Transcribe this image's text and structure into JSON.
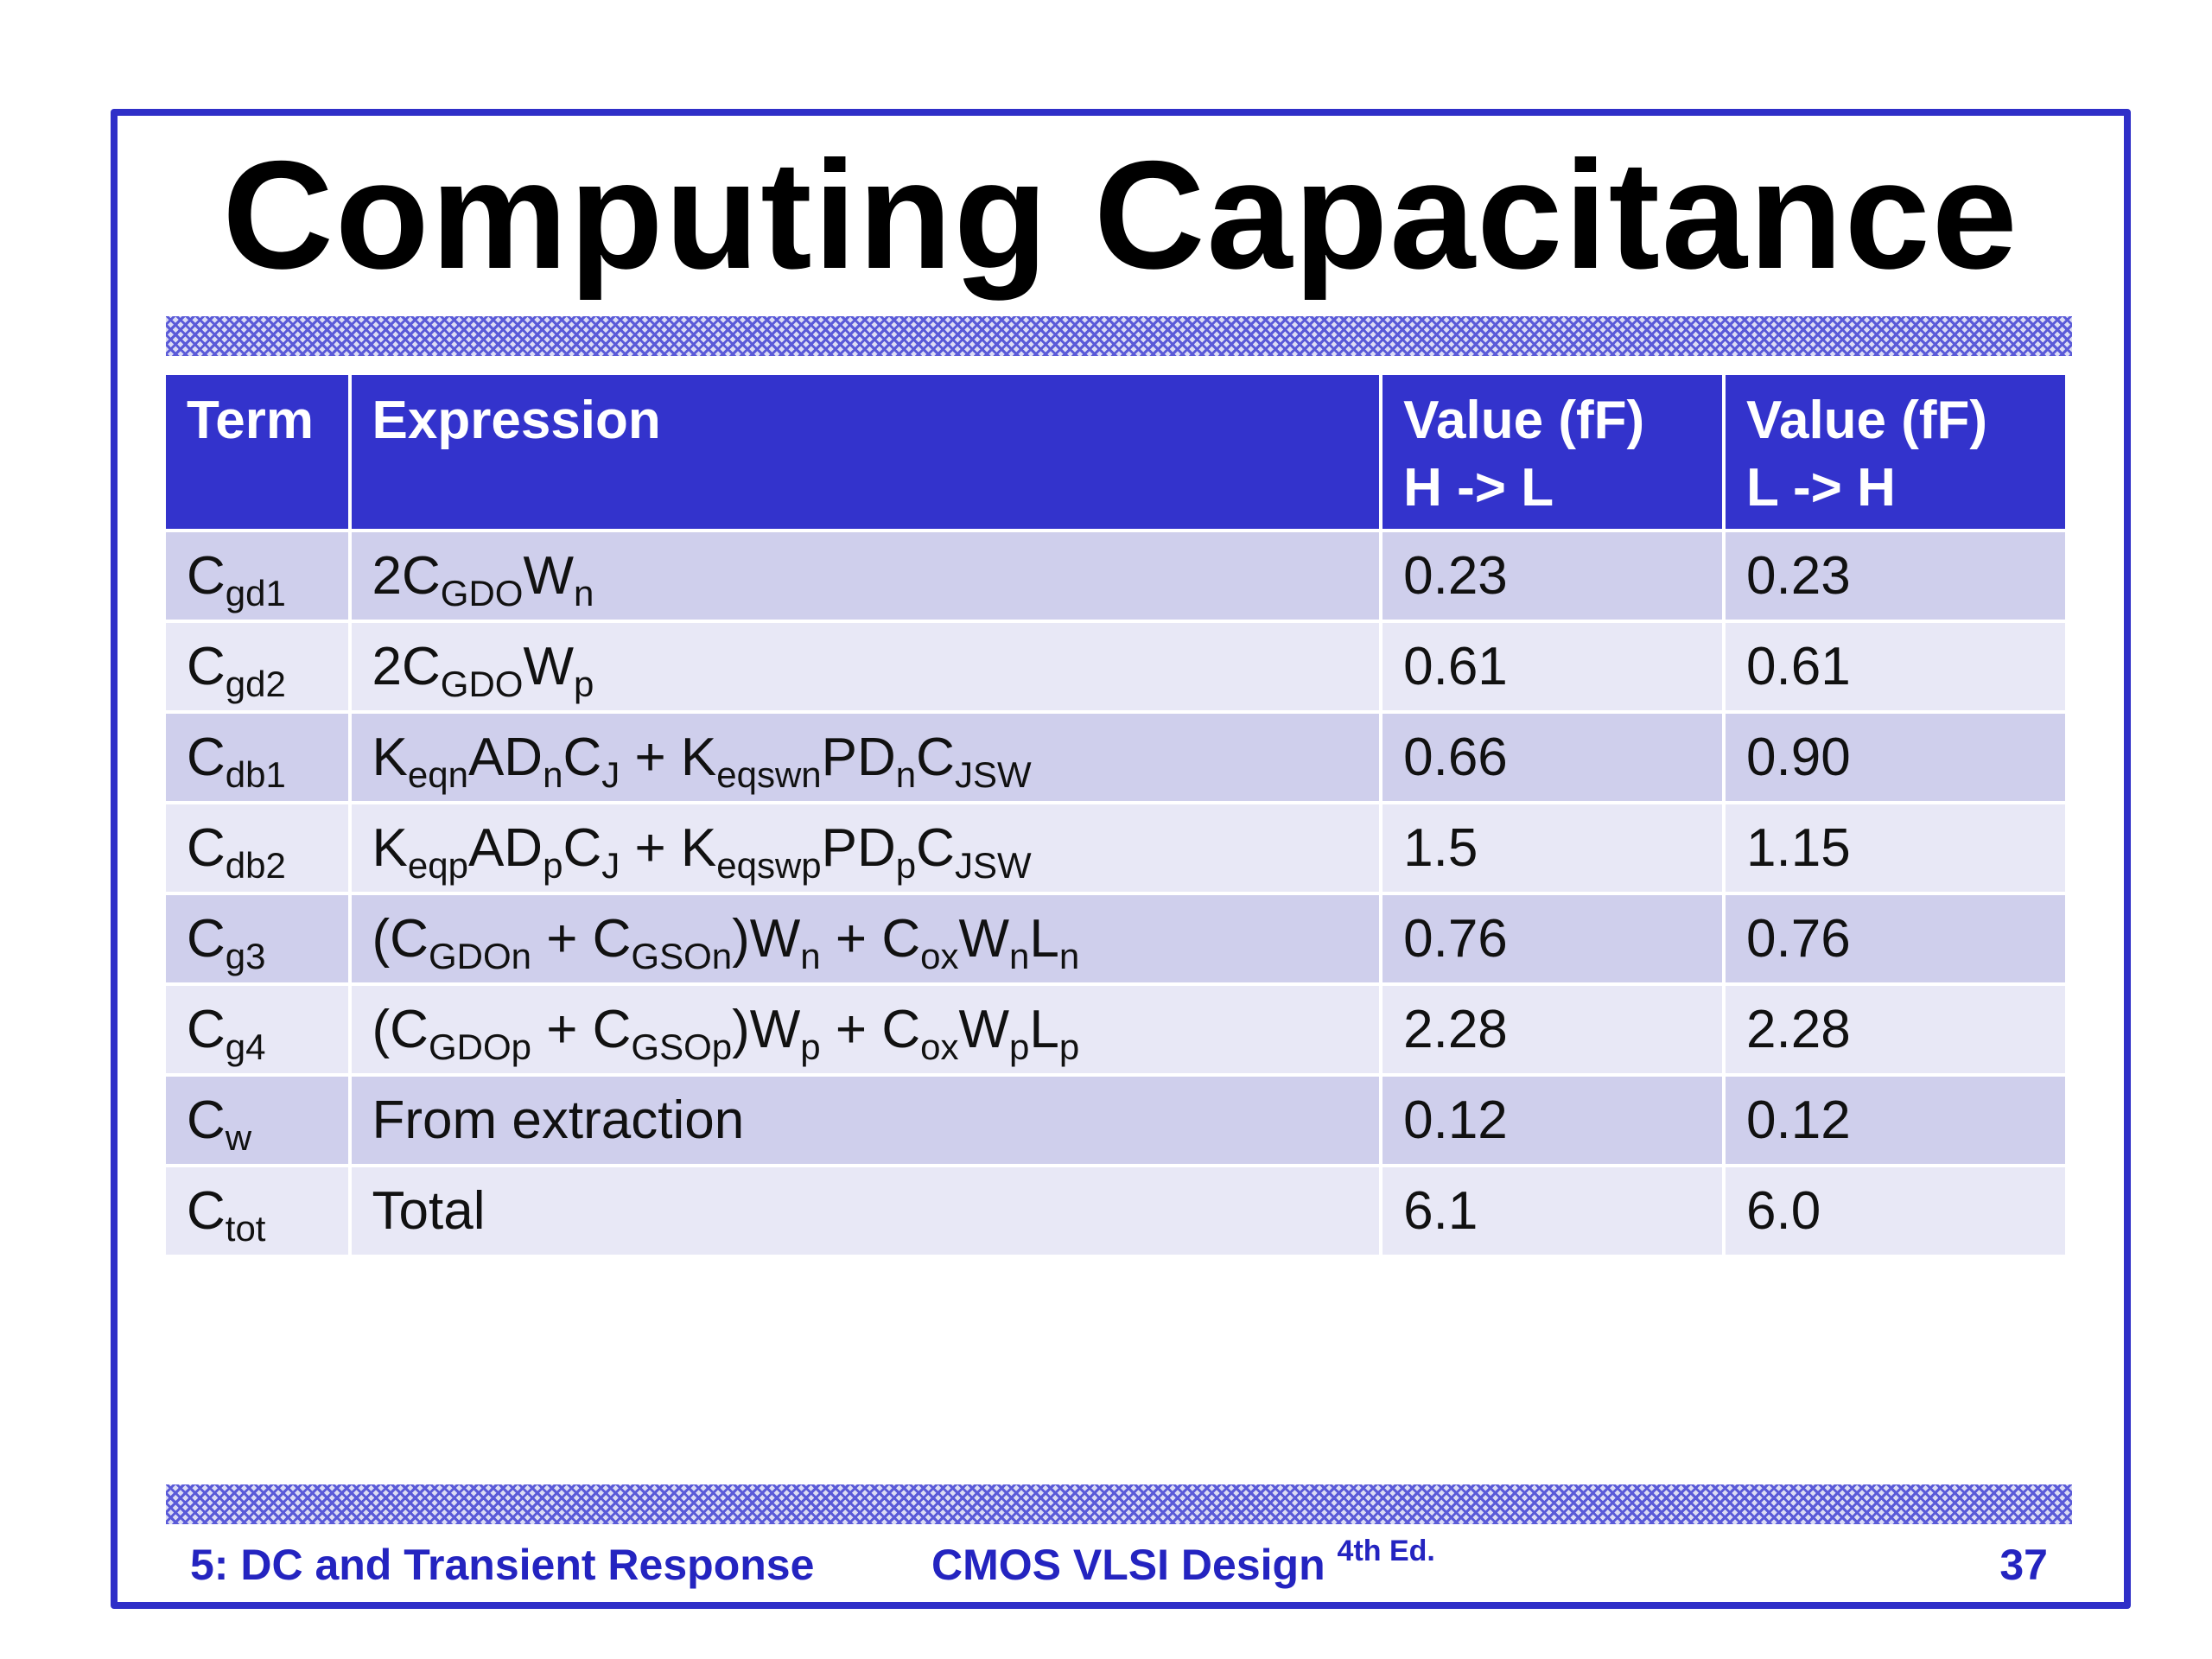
{
  "slide": {
    "title": "Computing Capacitance"
  },
  "table": {
    "headers": [
      {
        "line1": "Term",
        "line2": ""
      },
      {
        "line1": "Expression",
        "line2": ""
      },
      {
        "line1": "Value (fF)",
        "line2": "H -> L"
      },
      {
        "line1": "Value (fF)",
        "line2": "L -> H"
      }
    ],
    "rows": [
      {
        "term": [
          {
            "t": "C"
          },
          {
            "t": "gd1",
            "sub": true
          }
        ],
        "expression": [
          {
            "t": "2C"
          },
          {
            "t": "GDO",
            "sub": true
          },
          {
            "t": "W"
          },
          {
            "t": "n",
            "sub": true
          }
        ],
        "h_to_l": "0.23",
        "l_to_h": "0.23"
      },
      {
        "term": [
          {
            "t": "C"
          },
          {
            "t": "gd2",
            "sub": true
          }
        ],
        "expression": [
          {
            "t": "2C"
          },
          {
            "t": "GDO",
            "sub": true
          },
          {
            "t": "W"
          },
          {
            "t": "p",
            "sub": true
          }
        ],
        "h_to_l": "0.61",
        "l_to_h": "0.61"
      },
      {
        "term": [
          {
            "t": "C"
          },
          {
            "t": "db1",
            "sub": true
          }
        ],
        "expression": [
          {
            "t": "K"
          },
          {
            "t": "eqn",
            "sub": true
          },
          {
            "t": "AD"
          },
          {
            "t": "n",
            "sub": true
          },
          {
            "t": "C"
          },
          {
            "t": "J",
            "sub": true
          },
          {
            "t": " + K"
          },
          {
            "t": "eqswn",
            "sub": true
          },
          {
            "t": "PD"
          },
          {
            "t": "n",
            "sub": true
          },
          {
            "t": "C"
          },
          {
            "t": "JSW",
            "sub": true
          }
        ],
        "h_to_l": "0.66",
        "l_to_h": "0.90"
      },
      {
        "term": [
          {
            "t": "C"
          },
          {
            "t": "db2",
            "sub": true
          }
        ],
        "expression": [
          {
            "t": "K"
          },
          {
            "t": "eqp",
            "sub": true
          },
          {
            "t": "AD"
          },
          {
            "t": "p",
            "sub": true
          },
          {
            "t": "C"
          },
          {
            "t": "J",
            "sub": true
          },
          {
            "t": " + K"
          },
          {
            "t": "eqswp",
            "sub": true
          },
          {
            "t": "PD"
          },
          {
            "t": "p",
            "sub": true
          },
          {
            "t": "C"
          },
          {
            "t": "JSW",
            "sub": true
          }
        ],
        "h_to_l": "1.5",
        "l_to_h": "1.15"
      },
      {
        "term": [
          {
            "t": "C"
          },
          {
            "t": "g3",
            "sub": true
          }
        ],
        "expression": [
          {
            "t": "(C"
          },
          {
            "t": "GDOn",
            "sub": true
          },
          {
            "t": " + C"
          },
          {
            "t": "GSOn",
            "sub": true
          },
          {
            "t": ")W"
          },
          {
            "t": "n",
            "sub": true
          },
          {
            "t": " + C"
          },
          {
            "t": "ox",
            "sub": true
          },
          {
            "t": "W"
          },
          {
            "t": "n",
            "sub": true
          },
          {
            "t": "L"
          },
          {
            "t": "n",
            "sub": true
          }
        ],
        "h_to_l": "0.76",
        "l_to_h": "0.76"
      },
      {
        "term": [
          {
            "t": "C"
          },
          {
            "t": "g4",
            "sub": true
          }
        ],
        "expression": [
          {
            "t": "(C"
          },
          {
            "t": "GDOp",
            "sub": true
          },
          {
            "t": " + C"
          },
          {
            "t": "GSOp",
            "sub": true
          },
          {
            "t": ")W"
          },
          {
            "t": "p",
            "sub": true
          },
          {
            "t": " + C"
          },
          {
            "t": "ox",
            "sub": true
          },
          {
            "t": "W"
          },
          {
            "t": "p",
            "sub": true
          },
          {
            "t": "L"
          },
          {
            "t": "p",
            "sub": true
          }
        ],
        "h_to_l": "2.28",
        "l_to_h": "2.28"
      },
      {
        "term": [
          {
            "t": "C"
          },
          {
            "t": "w",
            "sub": true
          }
        ],
        "expression": [
          {
            "t": "From extraction"
          }
        ],
        "h_to_l": "0.12",
        "l_to_h": "0.12"
      },
      {
        "term": [
          {
            "t": "C"
          },
          {
            "t": "tot",
            "sub": true
          }
        ],
        "expression": [
          {
            "t": "Total"
          }
        ],
        "h_to_l": "6.1",
        "l_to_h": "6.0"
      }
    ]
  },
  "footer": {
    "left": "5: DC and Transient Response",
    "center": "CMOS VLSI Design",
    "center_sup": "4th Ed.",
    "page": "37"
  },
  "colors": {
    "border": "#2f2fc8",
    "header_bg": "#3333cc",
    "row_dark": "#cfcfec",
    "row_light": "#e8e8f6",
    "footer_text": "#2424c0"
  }
}
